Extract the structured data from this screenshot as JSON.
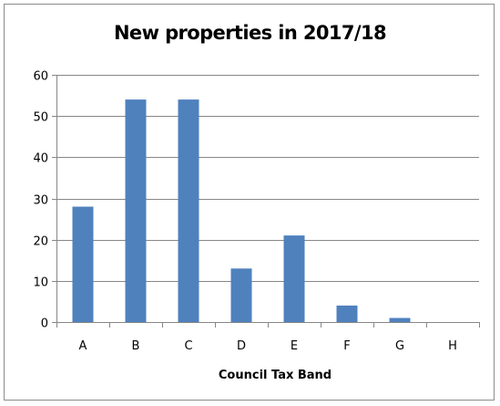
{
  "chart_data": {
    "type": "bar",
    "title": "New properties in 2017/18",
    "xlabel": "Council Tax Band",
    "ylabel": "",
    "categories": [
      "A",
      "B",
      "C",
      "D",
      "E",
      "F",
      "G",
      "H"
    ],
    "values": [
      28,
      54,
      54,
      13,
      21,
      4,
      1,
      0
    ],
    "ylim": [
      0,
      60
    ],
    "yticks": [
      0,
      10,
      20,
      30,
      40,
      50,
      60
    ],
    "grid": true,
    "legend": "none",
    "bar_color": "#4F81BD",
    "grid_color": "#878787",
    "axis_color": "#878787"
  }
}
